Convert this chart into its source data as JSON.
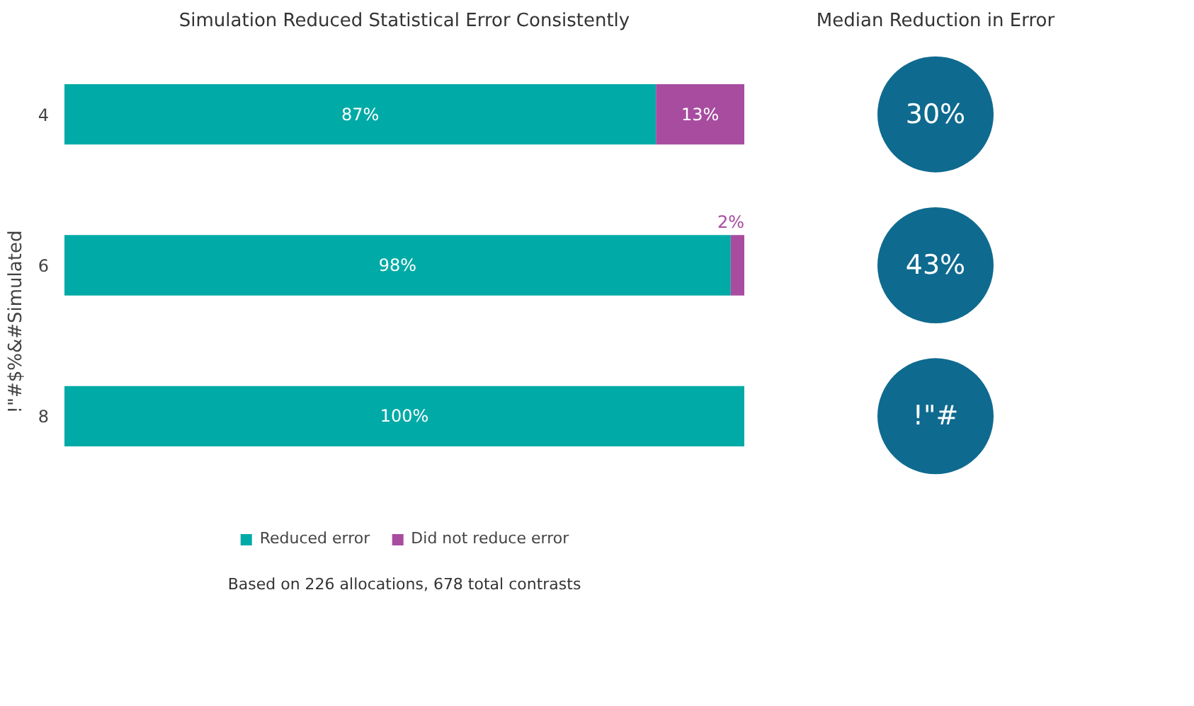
{
  "chart_data": [
    {
      "type": "bar",
      "orientation": "horizontal",
      "stacked": true,
      "title": "Simulation Reduced Statistical Error Consistently",
      "ylabel": "!\"#$%&#Simulated",
      "categories": [
        "4",
        "6",
        "8"
      ],
      "xlim": [
        0,
        100
      ],
      "legend": "bottom",
      "tick_labels": "y",
      "series": [
        {
          "name": "Reduced error",
          "color": "#00aaa6",
          "values": [
            87,
            98,
            100
          ],
          "value_labels": [
            "87%",
            "98%",
            "100%"
          ]
        },
        {
          "name": "Did not reduce error",
          "color": "#a84ca0",
          "values": [
            13,
            2,
            null
          ],
          "value_labels": [
            "13%",
            "2%",
            null
          ]
        }
      ],
      "annotations": [
        "Based on 226 allocations, 678 total contrasts"
      ]
    },
    {
      "type": "other",
      "title": "Median Reduction in Error",
      "color": "#0f6a8f",
      "annotations": [
        "30%",
        "43%",
        "!\"#"
      ]
    }
  ]
}
